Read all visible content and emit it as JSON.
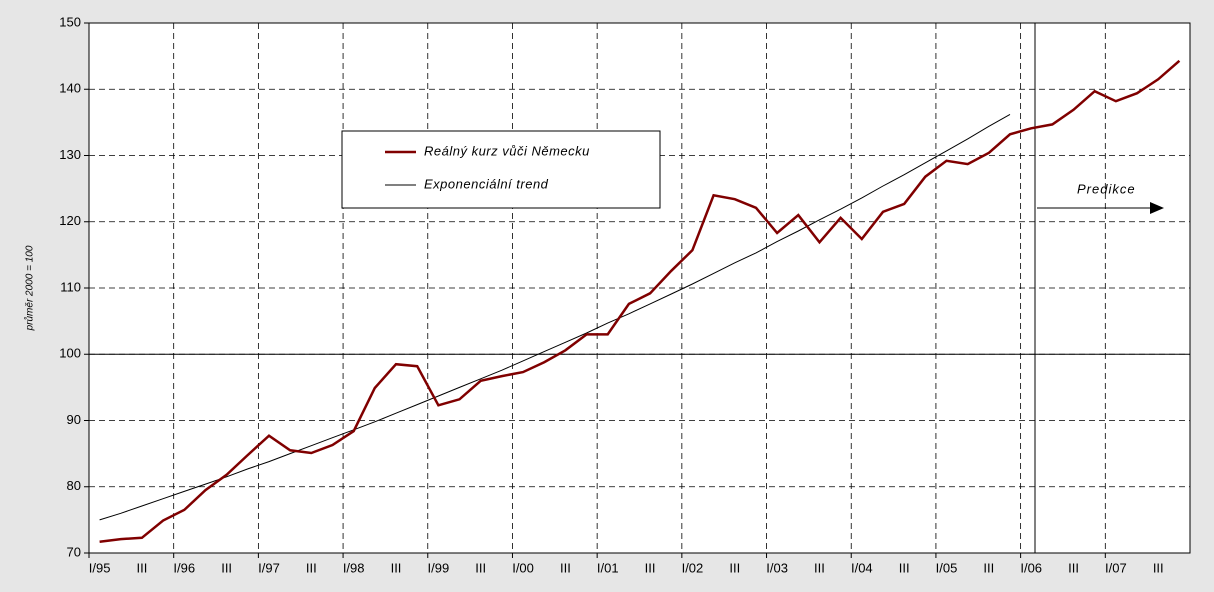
{
  "chart_data": {
    "type": "line",
    "y_label": "průměr 2000 = 100",
    "categories": [
      "I/95",
      null,
      "III",
      null,
      "I/96",
      null,
      "III",
      null,
      "I/97",
      null,
      "III",
      null,
      "I/98",
      null,
      "III",
      null,
      "I/99",
      null,
      "III",
      null,
      "I/00",
      null,
      "III",
      null,
      "I/01",
      null,
      "III",
      null,
      "I/02",
      null,
      "III",
      null,
      "I/03",
      null,
      "III",
      null,
      "I/04",
      null,
      "III",
      null,
      "I/05",
      null,
      "III",
      null,
      "I/06",
      null,
      "III",
      null,
      "I/07",
      null,
      "III",
      null
    ],
    "series": [
      {
        "name": "Reálný kurz vůči Německu",
        "color": "#800000",
        "values": [
          71.7,
          72.1,
          72.3,
          74.9,
          76.5,
          79.5,
          81.8,
          84.8,
          87.7,
          85.5,
          85.1,
          86.3,
          88.4,
          94.9,
          98.5,
          98.2,
          92.3,
          93.2,
          96.0,
          96.7,
          97.3,
          98.8,
          100.6,
          103.0,
          103.0,
          107.6,
          109.2,
          112.6,
          115.7,
          124.0,
          123.4,
          122.1,
          118.3,
          121.0,
          116.9,
          120.6,
          117.4,
          121.5,
          122.7,
          126.8,
          129.2,
          128.7,
          130.4,
          133.2,
          134.1,
          134.7,
          136.9,
          139.7,
          138.2,
          139.4,
          141.5,
          144.3
        ]
      },
      {
        "name": "Exponenciální trend",
        "color": "#000000",
        "values": [
          75.0,
          76.0,
          77.1,
          78.2,
          79.3,
          80.4,
          81.5,
          82.7,
          83.8,
          85.0,
          86.2,
          87.4,
          88.6,
          89.8,
          91.1,
          92.4,
          93.7,
          95.0,
          96.3,
          97.6,
          99.0,
          100.4,
          101.8,
          103.2,
          104.7,
          106.1,
          107.6,
          109.1,
          110.6,
          112.2,
          113.8,
          115.3,
          117.0,
          118.6,
          120.3,
          121.9,
          123.6,
          125.4,
          127.1,
          128.9,
          130.7,
          132.5,
          134.4,
          136.2,
          null,
          null,
          null,
          null,
          null,
          null,
          null,
          null
        ]
      }
    ],
    "ylim": [
      70,
      150
    ],
    "yticks": [
      70,
      80,
      90,
      100,
      110,
      120,
      130,
      140,
      150
    ],
    "grid": true,
    "reference_line": 100,
    "annotations": [
      {
        "text": "Predikce"
      }
    ]
  }
}
